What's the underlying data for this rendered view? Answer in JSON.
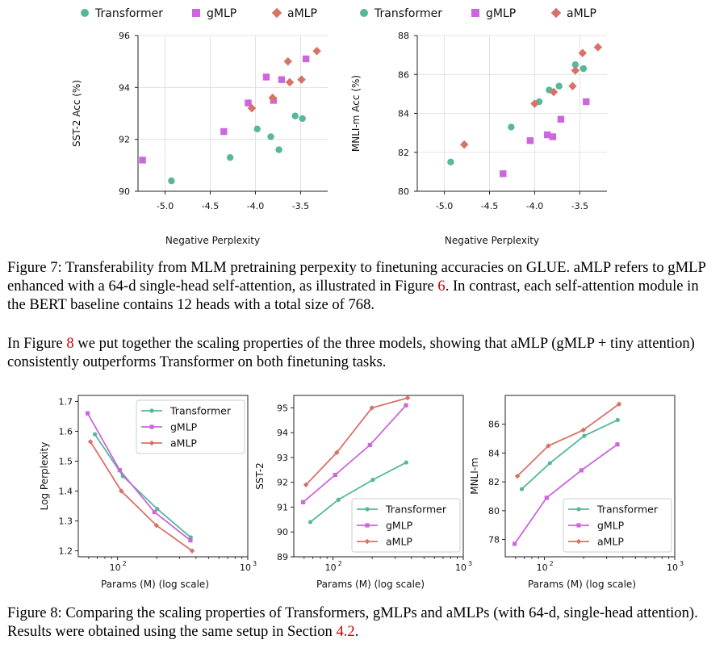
{
  "colors": {
    "transformer": "#55b89a",
    "gmlp": "#cc66dd",
    "amlp": "#d77268",
    "ref": "#cc0000"
  },
  "legend": {
    "transformer": "Transformer",
    "gmlp": "gMLP",
    "amlp": "aMLP"
  },
  "figure7": {
    "label": "Figure 7:",
    "text": "Transferability from MLM pretraining perpexity to finetuning accuracies on GLUE. aMLP refers to gMLP enhanced with a 64-d single-head self-attention, as illustrated in Figure",
    "ref": "6",
    "text2": ". In contrast, each self-attention module in the BERT baseline contains 12 heads with a total size of 768."
  },
  "paragraph": {
    "text1": "In Figure",
    "ref": "8",
    "text2": "we put together the scaling properties of the three models, showing that aMLP (gMLP + tiny attention) consistently outperforms Transformer on both finetuning tasks."
  },
  "figure8": {
    "label": "Figure 8:",
    "text": "Comparing the scaling properties of Transformers, gMLPs and aMLPs (with 64-d, single-head attention). Results were obtained using the same setup in Section",
    "ref": "4.2",
    "text2": "."
  },
  "chart_data": [
    {
      "id": "sst2_scatter",
      "type": "scatter",
      "xlabel": "Negative Perplexity",
      "ylabel": "SST-2 Acc (%)",
      "xlim": [
        -5.3,
        -3.2
      ],
      "ylim": [
        90,
        96
      ],
      "xticks": [
        -5.0,
        -4.5,
        -4.0,
        -3.5
      ],
      "xtick_labels": [
        "-5.0",
        "-4.5",
        "-4.0",
        "-3.5"
      ],
      "yticks": [
        90,
        92,
        94,
        96
      ],
      "ytick_labels": [
        "90",
        "92",
        "94",
        "96"
      ],
      "grid": true,
      "legend": "top-outside",
      "series": [
        {
          "name": "Transformer",
          "key": "transformer",
          "marker": "circle",
          "points": [
            [
              -4.93,
              90.4
            ],
            [
              -4.28,
              91.3
            ],
            [
              -3.98,
              92.4
            ],
            [
              -3.83,
              92.1
            ],
            [
              -3.74,
              91.6
            ],
            [
              -3.56,
              92.9
            ],
            [
              -3.48,
              92.8
            ]
          ]
        },
        {
          "name": "gMLP",
          "key": "gmlp",
          "marker": "square",
          "points": [
            [
              -5.25,
              91.2
            ],
            [
              -4.35,
              92.3
            ],
            [
              -4.08,
              93.4
            ],
            [
              -3.88,
              94.4
            ],
            [
              -3.8,
              93.5
            ],
            [
              -3.71,
              94.3
            ],
            [
              -3.44,
              95.1
            ]
          ]
        },
        {
          "name": "aMLP",
          "key": "amlp",
          "marker": "diamond",
          "points": [
            [
              -4.04,
              93.2
            ],
            [
              -3.81,
              93.6
            ],
            [
              -3.64,
              95.0
            ],
            [
              -3.62,
              94.2
            ],
            [
              -3.49,
              94.3
            ],
            [
              -3.32,
              95.4
            ]
          ]
        }
      ]
    },
    {
      "id": "mnli_scatter",
      "type": "scatter",
      "xlabel": "Negative Perplexity",
      "ylabel": "MNLI-m Acc (%)",
      "xlim": [
        -5.3,
        -3.2
      ],
      "ylim": [
        80,
        88
      ],
      "xticks": [
        -5.0,
        -4.5,
        -4.0,
        -3.5
      ],
      "xtick_labels": [
        "-5.0",
        "-4.5",
        "-4.0",
        "-3.5"
      ],
      "yticks": [
        80,
        82,
        84,
        86,
        88
      ],
      "ytick_labels": [
        "80",
        "82",
        "84",
        "86",
        "88"
      ],
      "grid": true,
      "legend": "top-outside",
      "series": [
        {
          "name": "Transformer",
          "key": "transformer",
          "marker": "circle",
          "points": [
            [
              -4.93,
              81.5
            ],
            [
              -4.26,
              83.3
            ],
            [
              -3.95,
              84.6
            ],
            [
              -3.84,
              85.2
            ],
            [
              -3.73,
              85.4
            ],
            [
              -3.55,
              86.5
            ],
            [
              -3.46,
              86.3
            ]
          ]
        },
        {
          "name": "gMLP",
          "key": "gmlp",
          "marker": "square",
          "points": [
            [
              -4.35,
              80.9
            ],
            [
              -4.05,
              82.6
            ],
            [
              -3.86,
              82.9
            ],
            [
              -3.8,
              82.8
            ],
            [
              -3.71,
              83.7
            ],
            [
              -3.43,
              84.6
            ]
          ]
        },
        {
          "name": "aMLP",
          "key": "amlp",
          "marker": "diamond",
          "points": [
            [
              -4.78,
              82.4
            ],
            [
              -4.0,
              84.5
            ],
            [
              -3.79,
              85.1
            ],
            [
              -3.58,
              85.4
            ],
            [
              -3.55,
              86.2
            ],
            [
              -3.47,
              87.1
            ],
            [
              -3.3,
              87.4
            ]
          ]
        }
      ]
    },
    {
      "id": "logppl_scaling",
      "type": "line",
      "xlabel": "Params (M) (log scale)",
      "ylabel": "Log Perplexity",
      "xscale": "log",
      "xlim": [
        50,
        1000
      ],
      "ylim": [
        1.18,
        1.72
      ],
      "xticks": [
        100,
        1000
      ],
      "xtick_labels": [
        "10",
        "10"
      ],
      "xtick_exponents": [
        "2",
        "3"
      ],
      "yticks": [
        1.2,
        1.3,
        1.4,
        1.5,
        1.6,
        1.7
      ],
      "ytick_labels": [
        "1.2",
        "1.3",
        "1.4",
        "1.5",
        "1.6",
        "1.7"
      ],
      "legend": "top-right",
      "series": [
        {
          "name": "Transformer",
          "key": "transformer",
          "marker": "circle",
          "x": [
            67,
            110,
            202,
            365
          ],
          "y": [
            1.59,
            1.45,
            1.34,
            1.245
          ]
        },
        {
          "name": "gMLP",
          "key": "gmlp",
          "marker": "square",
          "x": [
            59,
            104,
            192,
            363
          ],
          "y": [
            1.66,
            1.47,
            1.33,
            1.235
          ]
        },
        {
          "name": "aMLP",
          "key": "amlp",
          "marker": "diamond",
          "x": [
            62,
            107,
            199,
            374
          ],
          "y": [
            1.565,
            1.4,
            1.285,
            1.2
          ]
        }
      ]
    },
    {
      "id": "sst2_scaling",
      "type": "line",
      "xlabel": "Params (M) (log scale)",
      "ylabel": "SST-2",
      "xscale": "log",
      "xlim": [
        50,
        1000
      ],
      "ylim": [
        89,
        95.5
      ],
      "xticks": [
        100,
        1000
      ],
      "xtick_labels": [
        "10",
        "10"
      ],
      "xtick_exponents": [
        "2",
        "3"
      ],
      "yticks": [
        89,
        90,
        91,
        92,
        93,
        94,
        95
      ],
      "ytick_labels": [
        "89",
        "90",
        "91",
        "92",
        "93",
        "94",
        "95"
      ],
      "legend": "bottom-right",
      "series": [
        {
          "name": "Transformer",
          "key": "transformer",
          "marker": "circle",
          "x": [
            67,
            110,
            202,
            365
          ],
          "y": [
            90.4,
            91.3,
            92.1,
            92.8
          ]
        },
        {
          "name": "gMLP",
          "key": "gmlp",
          "marker": "square",
          "x": [
            59,
            104,
            192,
            363
          ],
          "y": [
            91.2,
            92.3,
            93.5,
            95.1
          ]
        },
        {
          "name": "aMLP",
          "key": "amlp",
          "marker": "diamond",
          "x": [
            62,
            107,
            199,
            374
          ],
          "y": [
            91.9,
            93.2,
            95.0,
            95.4
          ]
        }
      ]
    },
    {
      "id": "mnli_scaling",
      "type": "line",
      "xlabel": "Params (M) (log scale)",
      "ylabel": "MNLI-m",
      "xscale": "log",
      "xlim": [
        50,
        1000
      ],
      "ylim": [
        76.8,
        88
      ],
      "xticks": [
        100,
        1000
      ],
      "xtick_labels": [
        "10",
        "10"
      ],
      "xtick_exponents": [
        "2",
        "3"
      ],
      "yticks": [
        78,
        80,
        82,
        84,
        86
      ],
      "ytick_labels": [
        "78",
        "80",
        "82",
        "84",
        "86"
      ],
      "legend": "bottom-right",
      "series": [
        {
          "name": "Transformer",
          "key": "transformer",
          "marker": "circle",
          "x": [
            67,
            110,
            202,
            365
          ],
          "y": [
            81.5,
            83.3,
            85.2,
            86.3
          ]
        },
        {
          "name": "gMLP",
          "key": "gmlp",
          "marker": "square",
          "x": [
            59,
            104,
            192,
            363
          ],
          "y": [
            77.7,
            80.9,
            82.8,
            84.6
          ]
        },
        {
          "name": "aMLP",
          "key": "amlp",
          "marker": "diamond",
          "x": [
            62,
            107,
            199,
            374
          ],
          "y": [
            82.4,
            84.5,
            85.6,
            87.4
          ]
        }
      ]
    }
  ]
}
